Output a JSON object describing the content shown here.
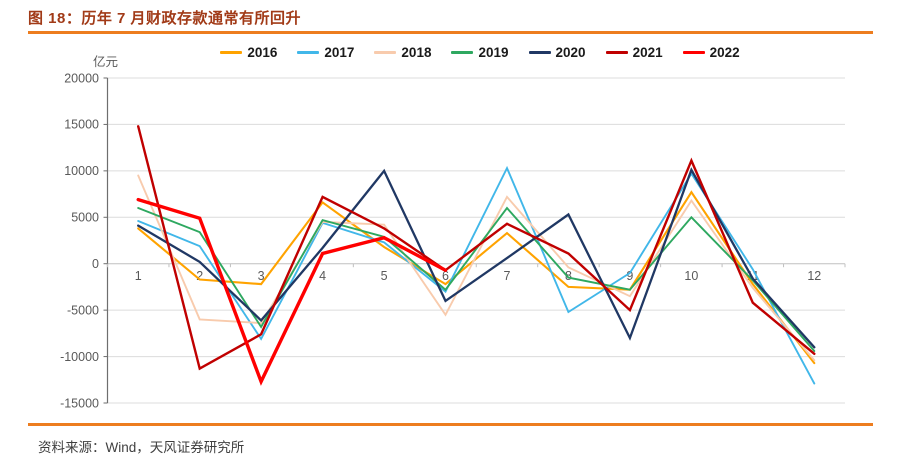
{
  "header": {
    "title": "图 18：历年 7 月财政存款通常有所回升"
  },
  "footer": {
    "source": "资料来源：Wind，天风证券研究所"
  },
  "colors": {
    "title_text": "#A13A17",
    "divider": "#ED7D1F",
    "axis_text": "#595959",
    "source_text": "#3F3F3F",
    "gridline": "#DCDCDC",
    "zero_line": "#C0C0C0",
    "axis_spine": "#6E6E6E"
  },
  "chart_data": {
    "type": "line",
    "title": "图 18：历年 7 月财政存款通常有所回升",
    "unit_label": "亿元",
    "xlabel": "",
    "ylabel": "亿元",
    "x": [
      1,
      2,
      3,
      4,
      5,
      6,
      7,
      8,
      9,
      10,
      11,
      12
    ],
    "ylim": [
      -15000,
      20000
    ],
    "ytick_step": 5000,
    "grid": true,
    "legend_position": "top",
    "series": [
      {
        "name": "2016",
        "color": "#FFA300",
        "width": 2.1,
        "values": [
          3800,
          -1700,
          -2200,
          6600,
          1800,
          -2200,
          3300,
          -2500,
          -2800,
          7700,
          -2200,
          -10700
        ]
      },
      {
        "name": "2017",
        "color": "#41B7E9",
        "width": 1.9,
        "values": [
          4600,
          1900,
          -8100,
          4400,
          2300,
          -3000,
          10300,
          -5200,
          -1000,
          9700,
          -600,
          -12900
        ]
      },
      {
        "name": "2018",
        "color": "#F8CBAD",
        "width": 1.9,
        "values": [
          9500,
          -6000,
          -6400,
          4500,
          4200,
          -5500,
          7200,
          -400,
          -3500,
          6800,
          -2600,
          -10400
        ]
      },
      {
        "name": "2019",
        "color": "#2EA860",
        "width": 1.9,
        "values": [
          6000,
          3400,
          -6800,
          4700,
          2900,
          -2800,
          6000,
          -1500,
          -2800,
          5000,
          -1800,
          -9400
        ]
      },
      {
        "name": "2020",
        "color": "#203864",
        "width": 2.3,
        "values": [
          4100,
          200,
          -6100,
          1700,
          10000,
          -4000,
          600,
          5300,
          -8000,
          10100,
          -1600,
          -9000
        ]
      },
      {
        "name": "2021",
        "color": "#C00000",
        "width": 2.4,
        "values": [
          14800,
          -11300,
          -7600,
          7200,
          3800,
          -700,
          4300,
          1100,
          -5000,
          11100,
          -4200,
          -9700
        ]
      },
      {
        "name": "2022",
        "color": "#FF0000",
        "width": 3.4,
        "values": [
          6900,
          4900,
          -12700,
          1100,
          2800,
          -700,
          null,
          null,
          null,
          null,
          null,
          null
        ]
      }
    ]
  }
}
